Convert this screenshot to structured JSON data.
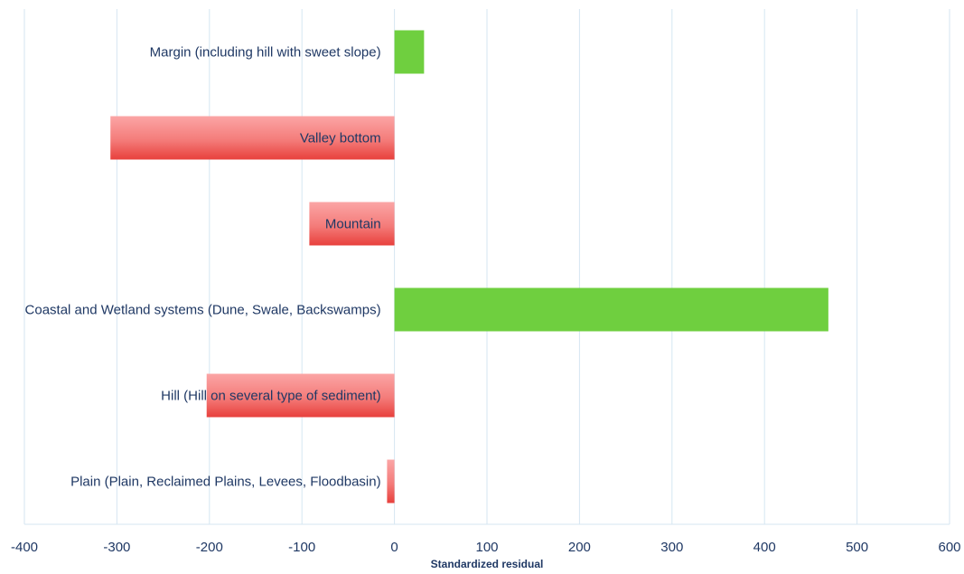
{
  "chart_data": {
    "type": "bar",
    "orientation": "horizontal",
    "categories": [
      "Margin (including hill with sweet slope)",
      "Valley bottom",
      "Mountain",
      "Coastal and Wetland systems (Dune, Swale, Backswamps)",
      "Hill (Hill on several type of sediment)",
      "Plain (Plain, Reclaimed Plains, Levees, Floodbasin)"
    ],
    "values": [
      32,
      -307,
      -92,
      469,
      -203,
      -8
    ],
    "title": "",
    "xlabel": "Standardized residual",
    "ylabel": "",
    "xlim": [
      -400,
      600
    ],
    "xticks": [
      "-400",
      "-300",
      "-200",
      "-100",
      "0",
      "100",
      "200",
      "300",
      "400",
      "500",
      "600"
    ],
    "grid": true,
    "legend": "none",
    "colors": {
      "positive": "#6fcf3f",
      "negative_top": "#fba5a5",
      "negative_bottom": "#e8403c",
      "text": "#1f3864",
      "grid": "#d6e6f2"
    }
  }
}
